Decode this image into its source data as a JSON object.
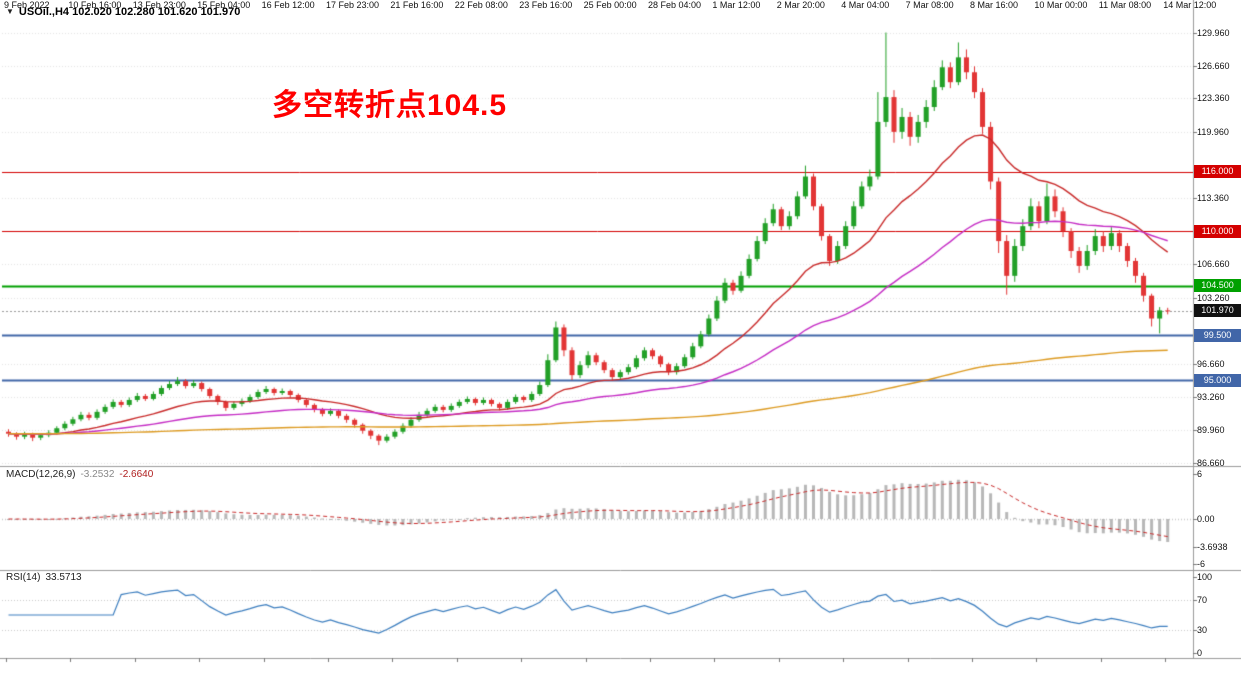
{
  "window": {
    "title": "USOil.,H4 102.020 102.280 101.620 101.970",
    "title_icon": "▼"
  },
  "annotation": {
    "text": "多空转折点104.5",
    "color": "#ff0000"
  },
  "panels": {
    "macd": {
      "name": "MACD(12,26,9)",
      "value_main": "-3.2532",
      "value_signal": "-2.6640"
    },
    "rsi": {
      "name": "RSI(14)",
      "value": "33.5713"
    }
  },
  "chart_data": {
    "type": "candlestick",
    "symbol": "USOil",
    "timeframe": "H4",
    "title": "USOil.,H4",
    "current": {
      "open": 102.02,
      "high": 102.28,
      "low": 101.62,
      "close": 101.97
    },
    "price_axis": {
      "min": 86.65,
      "max": 130.76,
      "labels": [
        {
          "text": "129.960",
          "value": 129.96
        },
        {
          "text": "126.660",
          "value": 126.66
        },
        {
          "text": "123.360",
          "value": 123.36
        },
        {
          "text": "119.960",
          "value": 119.96
        },
        {
          "text": "113.360",
          "value": 113.36
        },
        {
          "text": "106.660",
          "value": 106.66
        },
        {
          "text": "103.260",
          "value": 103.26
        },
        {
          "text": "96.660",
          "value": 96.66
        },
        {
          "text": "93.260",
          "value": 93.26
        },
        {
          "text": "89.960",
          "value": 89.96
        },
        {
          "text": "86.660",
          "value": 86.66
        }
      ]
    },
    "hlines": [
      {
        "price": 116.0,
        "color": "#d40000",
        "width": 1,
        "label": "116.000"
      },
      {
        "price": 110.0,
        "color": "#d40000",
        "width": 1,
        "label": "110.000"
      },
      {
        "price": 104.5,
        "color": "#00a000",
        "width": 2,
        "label": "104.500"
      },
      {
        "price": 99.5,
        "color": "#4166a8",
        "width": 2,
        "label": "99.500"
      },
      {
        "price": 95.0,
        "color": "#4166a8",
        "width": 2,
        "label": "95.000"
      }
    ],
    "current_price_line": {
      "price": 101.97,
      "label": "101.970",
      "bg": "#111111"
    },
    "moving_averages": [
      {
        "name": "ma-fast-red",
        "period": 21,
        "color": "#c92a2a"
      },
      {
        "name": "ma-mid-magenta",
        "period": 55,
        "color": "#c52cc5"
      },
      {
        "name": "ma-slow-orange",
        "period": 300,
        "color": "#dd9b22"
      }
    ],
    "time_labels": [
      {
        "i": 0,
        "label": "9 Feb 2022"
      },
      {
        "i": 8,
        "label": "10 Feb 16:00"
      },
      {
        "i": 16,
        "label": "13 Feb 23:00"
      },
      {
        "i": 24,
        "label": "15 Feb 04:00"
      },
      {
        "i": 32,
        "label": "16 Feb 12:00"
      },
      {
        "i": 40,
        "label": "17 Feb 23:00"
      },
      {
        "i": 48,
        "label": "21 Feb 16:00"
      },
      {
        "i": 56,
        "label": "22 Feb 08:00"
      },
      {
        "i": 64,
        "label": "23 Feb 16:00"
      },
      {
        "i": 72,
        "label": "25 Feb 00:00"
      },
      {
        "i": 80,
        "label": "28 Feb 04:00"
      },
      {
        "i": 88,
        "label": "1 Mar 12:00"
      },
      {
        "i": 96,
        "label": "2 Mar 20:00"
      },
      {
        "i": 104,
        "label": "4 Mar 04:00"
      },
      {
        "i": 112,
        "label": "7 Mar 08:00"
      },
      {
        "i": 120,
        "label": "8 Mar 16:00"
      },
      {
        "i": 128,
        "label": "10 Mar 00:00"
      },
      {
        "i": 136,
        "label": "11 Mar 08:00"
      },
      {
        "i": 144,
        "label": "14 Mar 12:00"
      }
    ],
    "candles": [
      [
        89.8,
        90.05,
        89.3,
        89.6
      ],
      [
        89.6,
        89.75,
        89.0,
        89.3
      ],
      [
        89.3,
        89.8,
        89.05,
        89.55
      ],
      [
        89.55,
        89.7,
        88.85,
        89.2
      ],
      [
        89.2,
        89.65,
        88.95,
        89.45
      ],
      [
        89.45,
        89.95,
        89.25,
        89.7
      ],
      [
        89.7,
        90.35,
        89.5,
        90.15
      ],
      [
        90.15,
        90.85,
        89.95,
        90.6
      ],
      [
        90.6,
        91.3,
        90.4,
        91.05
      ],
      [
        91.05,
        91.8,
        90.85,
        91.5
      ],
      [
        91.5,
        91.75,
        90.95,
        91.2
      ],
      [
        91.2,
        92.05,
        91.0,
        91.8
      ],
      [
        91.8,
        92.55,
        91.6,
        92.3
      ],
      [
        92.3,
        93.05,
        92.1,
        92.8
      ],
      [
        92.8,
        93.0,
        92.25,
        92.5
      ],
      [
        92.5,
        93.25,
        92.3,
        93.0
      ],
      [
        93.0,
        93.7,
        92.8,
        93.4
      ],
      [
        93.4,
        93.6,
        92.9,
        93.1
      ],
      [
        93.1,
        93.85,
        92.95,
        93.6
      ],
      [
        93.6,
        94.45,
        93.4,
        94.2
      ],
      [
        94.2,
        94.9,
        94.0,
        94.6
      ],
      [
        94.6,
        95.3,
        94.4,
        94.9
      ],
      [
        94.9,
        95.1,
        94.15,
        94.4
      ],
      [
        94.4,
        95.0,
        94.2,
        94.7
      ],
      [
        94.7,
        94.85,
        93.85,
        94.1
      ],
      [
        94.1,
        94.25,
        93.15,
        93.4
      ],
      [
        93.4,
        93.55,
        92.5,
        92.8
      ],
      [
        92.8,
        92.95,
        91.9,
        92.2
      ],
      [
        92.2,
        92.85,
        92.0,
        92.6
      ],
      [
        92.6,
        93.15,
        92.35,
        92.9
      ],
      [
        92.9,
        93.55,
        92.7,
        93.3
      ],
      [
        93.3,
        94.05,
        93.1,
        93.8
      ],
      [
        93.8,
        94.4,
        93.6,
        94.1
      ],
      [
        94.1,
        94.25,
        93.45,
        93.7
      ],
      [
        93.7,
        94.15,
        93.5,
        93.9
      ],
      [
        93.9,
        94.05,
        93.25,
        93.5
      ],
      [
        93.5,
        93.65,
        92.75,
        93.0
      ],
      [
        93.0,
        93.15,
        92.25,
        92.5
      ],
      [
        92.5,
        92.65,
        91.75,
        92.0
      ],
      [
        92.0,
        92.2,
        91.35,
        91.6
      ],
      [
        91.6,
        92.15,
        91.4,
        91.9
      ],
      [
        91.9,
        92.05,
        91.15,
        91.4
      ],
      [
        91.4,
        91.6,
        90.7,
        91.0
      ],
      [
        91.0,
        91.15,
        90.2,
        90.5
      ],
      [
        90.5,
        90.65,
        89.6,
        89.9
      ],
      [
        89.9,
        90.05,
        89.05,
        89.4
      ],
      [
        89.4,
        89.55,
        88.45,
        88.9
      ],
      [
        88.9,
        89.55,
        88.7,
        89.3
      ],
      [
        89.3,
        90.05,
        89.1,
        89.8
      ],
      [
        89.8,
        90.65,
        89.6,
        90.4
      ],
      [
        90.4,
        91.25,
        90.2,
        91.0
      ],
      [
        91.0,
        91.8,
        90.8,
        91.5
      ],
      [
        91.5,
        92.15,
        91.3,
        91.9
      ],
      [
        91.9,
        92.55,
        91.7,
        92.3
      ],
      [
        92.3,
        92.5,
        91.75,
        92.0
      ],
      [
        92.0,
        92.65,
        91.8,
        92.4
      ],
      [
        92.4,
        93.05,
        92.2,
        92.8
      ],
      [
        92.8,
        93.35,
        92.6,
        93.1
      ],
      [
        93.1,
        93.25,
        92.45,
        92.7
      ],
      [
        92.7,
        93.25,
        92.5,
        93.0
      ],
      [
        93.0,
        93.15,
        92.35,
        92.6
      ],
      [
        92.6,
        92.75,
        91.95,
        92.2
      ],
      [
        92.2,
        93.05,
        92.0,
        92.8
      ],
      [
        92.8,
        93.55,
        92.6,
        93.3
      ],
      [
        93.3,
        93.45,
        92.75,
        93.0
      ],
      [
        93.0,
        93.85,
        92.8,
        93.6
      ],
      [
        93.6,
        94.85,
        93.4,
        94.5
      ],
      [
        94.5,
        97.6,
        94.3,
        97.0
      ],
      [
        97.0,
        100.9,
        96.8,
        100.3
      ],
      [
        100.3,
        100.6,
        97.4,
        98.0
      ],
      [
        98.0,
        98.3,
        95.0,
        95.5
      ],
      [
        95.5,
        96.9,
        95.2,
        96.5
      ],
      [
        96.5,
        97.9,
        96.2,
        97.5
      ],
      [
        97.5,
        97.75,
        96.5,
        96.8
      ],
      [
        96.8,
        97.0,
        95.7,
        96.0
      ],
      [
        96.0,
        96.2,
        94.95,
        95.3
      ],
      [
        95.3,
        96.05,
        95.05,
        95.8
      ],
      [
        95.8,
        96.6,
        95.55,
        96.3
      ],
      [
        96.3,
        97.5,
        96.1,
        97.2
      ],
      [
        97.2,
        98.3,
        96.95,
        98.0
      ],
      [
        98.0,
        98.2,
        97.1,
        97.4
      ],
      [
        97.4,
        97.55,
        96.3,
        96.6
      ],
      [
        96.6,
        96.75,
        95.5,
        95.8
      ],
      [
        95.8,
        96.7,
        95.55,
        96.4
      ],
      [
        96.4,
        97.6,
        96.2,
        97.3
      ],
      [
        97.3,
        98.75,
        97.1,
        98.4
      ],
      [
        98.4,
        99.95,
        98.2,
        99.6
      ],
      [
        99.6,
        101.6,
        99.4,
        101.2
      ],
      [
        101.2,
        103.45,
        100.95,
        103.0
      ],
      [
        103.0,
        105.25,
        102.75,
        104.8
      ],
      [
        104.8,
        105.1,
        103.6,
        104.0
      ],
      [
        104.0,
        105.95,
        103.8,
        105.5
      ],
      [
        105.5,
        107.65,
        105.25,
        107.2
      ],
      [
        107.2,
        109.5,
        106.95,
        109.0
      ],
      [
        109.0,
        111.3,
        108.7,
        110.8
      ],
      [
        110.8,
        112.75,
        110.5,
        112.2
      ],
      [
        112.2,
        112.45,
        110.1,
        110.5
      ],
      [
        110.5,
        112.0,
        110.15,
        111.5
      ],
      [
        111.5,
        114.0,
        111.2,
        113.5
      ],
      [
        113.5,
        116.6,
        113.25,
        115.5
      ],
      [
        115.5,
        115.8,
        112.1,
        112.5
      ],
      [
        112.5,
        112.75,
        109.05,
        109.5
      ],
      [
        109.5,
        109.7,
        106.5,
        107.0
      ],
      [
        107.0,
        109.0,
        106.7,
        108.5
      ],
      [
        108.5,
        111.0,
        108.2,
        110.5
      ],
      [
        110.5,
        113.0,
        110.2,
        112.5
      ],
      [
        112.5,
        115.0,
        112.25,
        114.5
      ],
      [
        114.5,
        116.2,
        114.1,
        115.5
      ],
      [
        115.5,
        124.0,
        115.2,
        121.0
      ],
      [
        121.0,
        130.0,
        120.5,
        123.5
      ],
      [
        123.5,
        124.2,
        118.9,
        120.0
      ],
      [
        120.0,
        122.4,
        119.3,
        121.5
      ],
      [
        121.5,
        122.0,
        118.6,
        119.5
      ],
      [
        119.5,
        121.7,
        118.9,
        121.0
      ],
      [
        121.0,
        123.2,
        120.4,
        122.5
      ],
      [
        122.5,
        125.2,
        122.1,
        124.5
      ],
      [
        124.5,
        127.2,
        124.2,
        126.5
      ],
      [
        126.5,
        127.0,
        124.4,
        125.0
      ],
      [
        125.0,
        129.0,
        124.7,
        127.5
      ],
      [
        127.5,
        128.3,
        125.3,
        126.0
      ],
      [
        126.0,
        126.6,
        123.4,
        124.0
      ],
      [
        124.0,
        124.4,
        119.8,
        120.5
      ],
      [
        120.5,
        121.0,
        114.2,
        115.0
      ],
      [
        115.0,
        115.4,
        107.8,
        109.0
      ],
      [
        109.0,
        109.6,
        103.6,
        105.5
      ],
      [
        105.5,
        109.2,
        104.9,
        108.5
      ],
      [
        108.5,
        111.2,
        108.0,
        110.5
      ],
      [
        110.5,
        113.3,
        110.1,
        112.5
      ],
      [
        112.5,
        113.0,
        110.3,
        111.0
      ],
      [
        111.0,
        114.8,
        110.7,
        113.5
      ],
      [
        113.5,
        114.2,
        111.4,
        112.0
      ],
      [
        112.0,
        112.4,
        109.4,
        110.0
      ],
      [
        110.0,
        110.3,
        107.3,
        108.0
      ],
      [
        108.0,
        108.4,
        105.8,
        106.5
      ],
      [
        106.5,
        108.6,
        106.1,
        108.0
      ],
      [
        108.0,
        110.2,
        107.6,
        109.5
      ],
      [
        109.5,
        110.0,
        107.9,
        108.5
      ],
      [
        108.5,
        110.4,
        108.1,
        109.8
      ],
      [
        109.8,
        110.1,
        107.9,
        108.5
      ],
      [
        108.5,
        108.8,
        106.4,
        107.0
      ],
      [
        107.0,
        107.3,
        104.8,
        105.5
      ],
      [
        105.5,
        105.8,
        102.9,
        103.5
      ],
      [
        103.5,
        103.7,
        100.4,
        101.2
      ],
      [
        101.2,
        102.35,
        99.7,
        102.02
      ],
      [
        102.02,
        102.28,
        101.62,
        101.97
      ]
    ],
    "macd": {
      "params": "12,26,9",
      "value": -3.2532,
      "signal_value": -2.664,
      "range": [
        -6.3,
        6.3
      ],
      "histogram_color": "#b8b8b8",
      "signal_color": "#c92a2a",
      "scale_labels": [
        {
          "text": "6",
          "value": 6
        },
        {
          "text": "0.00",
          "value": 0
        },
        {
          "text": "-3.6938",
          "value": -3.6938
        },
        {
          "text": "-6",
          "value": -6
        }
      ]
    },
    "rsi": {
      "period": 14,
      "value": 33.5713,
      "range": [
        0,
        100
      ],
      "levels": [
        30,
        70
      ],
      "line_color": "#3c7ebf",
      "scale_labels": [
        {
          "text": "100",
          "value": 100
        },
        {
          "text": "70",
          "value": 70
        },
        {
          "text": "30",
          "value": 30
        },
        {
          "text": "0",
          "value": 0
        }
      ]
    },
    "colors": {
      "up": "#22a027",
      "down": "#e23535",
      "background": "#ffffff",
      "grid": "#e3e3e3",
      "separator": "#9a9a9a"
    }
  }
}
